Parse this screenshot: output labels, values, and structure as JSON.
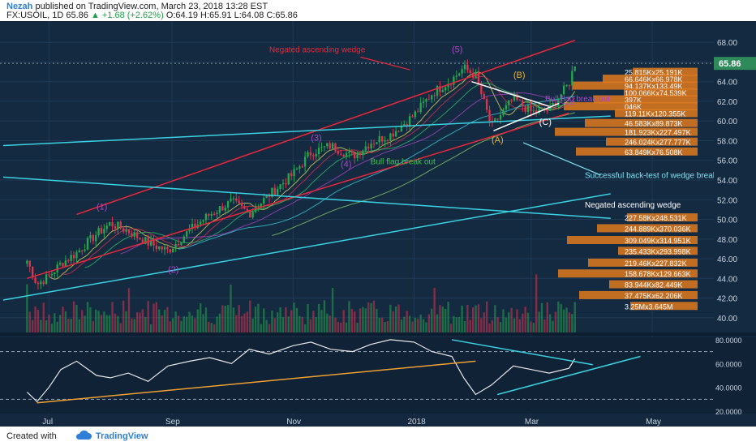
{
  "header": {
    "author": "Nezah",
    "published": "published on TradingView.com, March 23, 2018 13:28 EST",
    "symbol": "FX:USOIL, 1D",
    "last": "65.86",
    "change": "+1.68 (+2.62%)",
    "open": "O:64.19",
    "high": "H:65.91",
    "low": "L:64.08",
    "close": "C:65.86"
  },
  "footer": {
    "created": "Created with",
    "brand": "TradingView"
  },
  "colors": {
    "up": "#26a64d",
    "down": "#e0324b",
    "wedge": "#e8283a",
    "trend": "#3ad2e0",
    "label": "#b044c9",
    "rsi": "#e8e8e8",
    "rsi_trend": "#f0a032",
    "vp_bar": "#e07a1e",
    "vp_green": "#2e8b3e"
  },
  "chart_data": [
    {
      "type": "candlestick",
      "title": "FX:USOIL, 1D",
      "ylim": [
        38.5,
        69.5
      ],
      "price_ticks": [
        "68.00",
        "66.00",
        "64.00",
        "62.00",
        "60.00",
        "58.00",
        "56.00",
        "54.00",
        "52.00",
        "50.00",
        "48.00",
        "46.00",
        "44.00",
        "42.00",
        "40.00"
      ],
      "last_price_label": "65.86",
      "time_ticks": [
        "Jul",
        "Sep",
        "Nov",
        "2018",
        "Mar",
        "May"
      ],
      "x": [
        "2017-06-20",
        "2017-06-25",
        "2017-07-01",
        "2017-07-07",
        "2017-07-15",
        "2017-07-25",
        "2017-08-01",
        "2017-08-10",
        "2017-08-20",
        "2017-08-30",
        "2017-09-10",
        "2017-09-20",
        "2017-10-01",
        "2017-10-10",
        "2017-10-20",
        "2017-11-01",
        "2017-11-10",
        "2017-11-20",
        "2017-12-01",
        "2017-12-10",
        "2017-12-20",
        "2018-01-01",
        "2018-01-10",
        "2018-01-20",
        "2018-01-26",
        "2018-02-01",
        "2018-02-09",
        "2018-02-20",
        "2018-03-01",
        "2018-03-10",
        "2018-03-20",
        "2018-03-23"
      ],
      "close": [
        45.8,
        43.4,
        44.2,
        45.5,
        46.6,
        48.5,
        49.6,
        48.8,
        47.6,
        46.8,
        48.9,
        50.5,
        51.8,
        50.6,
        52.5,
        54.6,
        56.8,
        57.5,
        56.4,
        57.8,
        58.6,
        60.6,
        62.8,
        64.2,
        65.4,
        64.6,
        59.4,
        62.3,
        60.9,
        61.1,
        63.8,
        65.86
      ],
      "volume_scale": "relative",
      "rsi": {
        "ylim": [
          18,
          82
        ],
        "ticks": [
          "80.0000",
          "60.0000",
          "40.0000",
          "20.0000"
        ],
        "values": [
          36,
          28,
          40,
          55,
          62,
          50,
          48,
          52,
          45,
          58,
          62,
          65,
          60,
          72,
          68,
          75,
          78,
          72,
          70,
          76,
          80,
          78,
          70,
          66,
          48,
          34,
          42,
          58,
          55,
          52,
          56,
          64
        ]
      },
      "volume_profile": [
        {
          "price": 65.0,
          "label": "25.815Kx25.191K"
        },
        {
          "price": 64.3,
          "label": "66.646Kx66.978K"
        },
        {
          "price": 63.6,
          "label": "94.137Kx133.49K"
        },
        {
          "price": 62.9,
          "label": "100.066Kx74.539K"
        },
        {
          "price": 62.2,
          "label": "397K"
        },
        {
          "price": 61.5,
          "label": "046K"
        },
        {
          "price": 60.8,
          "label": "119.11Kx120.355K"
        },
        {
          "price": 59.8,
          "label": "46.583Kx89.873K"
        },
        {
          "price": 58.9,
          "label": "181.923Kx227.497K"
        },
        {
          "price": 57.9,
          "label": "246.024Kx277.777K"
        },
        {
          "price": 56.9,
          "label": "63.849Kx76.508K"
        },
        {
          "price": 50.2,
          "label": "227.58Kx248.531K"
        },
        {
          "price": 49.1,
          "label": "244.889Kx370.036K"
        },
        {
          "price": 47.9,
          "label": "309.049Kx314.951K"
        },
        {
          "price": 46.8,
          "label": "235.433Kx293.998K"
        },
        {
          "price": 45.6,
          "label": "219.46Kx227.832K"
        },
        {
          "price": 44.5,
          "label": "158.678Kx129.663K"
        },
        {
          "price": 43.4,
          "label": "83.944Kx82.449K"
        },
        {
          "price": 42.3,
          "label": "37.475Kx62.206K"
        },
        {
          "price": 41.2,
          "label": "3.25Mx3.645M"
        }
      ],
      "annotations": {
        "wave_1": "(1)",
        "wave_2": "(2)",
        "wave_3": "(3)",
        "wave_4": "(4)",
        "wave_5": "(5)",
        "wave_a": "(A)",
        "wave_b": "(B)",
        "wave_c": "(C)",
        "negated_wedge_top": "Negated ascending wedge",
        "negated_wedge_bottom": "Negated ascending wedge",
        "bull_flag_1": "Bull flag break out",
        "bull_flag_2": "Bull flag break out",
        "back_test": "Successful back-test of wedge break-out"
      }
    }
  ]
}
